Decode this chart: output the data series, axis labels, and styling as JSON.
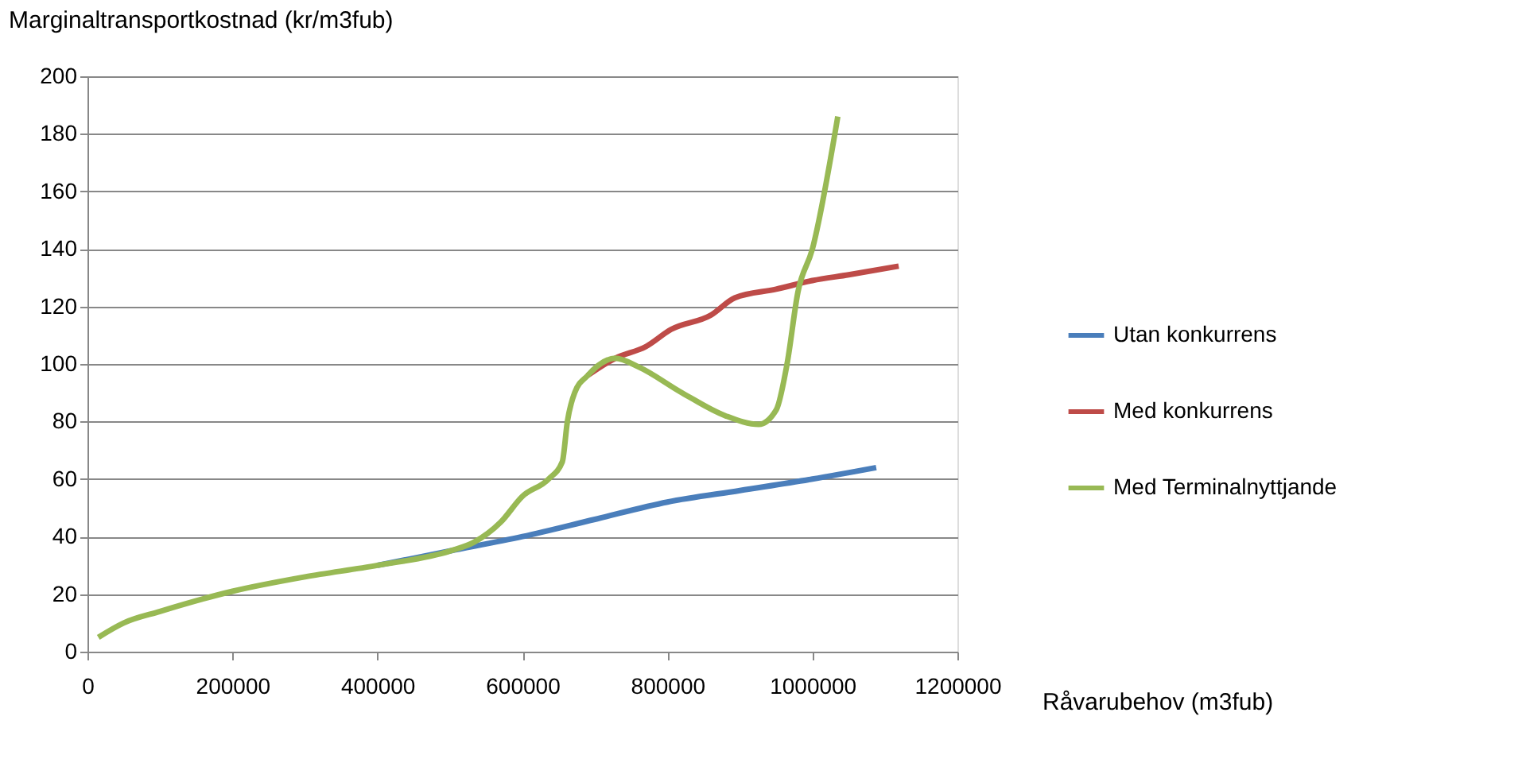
{
  "chart_data": {
    "type": "line",
    "ylabel": "Marginaltransportkostnad (kr/m3fub)",
    "xlabel": "Råvarubehov (m3fub)",
    "xlim": [
      0,
      1200000
    ],
    "xticks": [
      0,
      200000,
      400000,
      600000,
      800000,
      1000000,
      1200000
    ],
    "ylim": [
      0,
      200
    ],
    "yticks": [
      0,
      20,
      40,
      60,
      80,
      100,
      120,
      140,
      160,
      180,
      200
    ],
    "grid": "y",
    "legend": "right",
    "line_style": "solid",
    "marker": "none",
    "series": [
      {
        "name": "Utan konkurrens",
        "color": "#4a7ebb",
        "x": [
          400000,
          500000,
          600000,
          700000,
          800000,
          900000,
          1000000,
          1088000
        ],
        "values": [
          30,
          35,
          40,
          46,
          52,
          56,
          60,
          64
        ]
      },
      {
        "name": "Med konkurrens",
        "color": "#be4b48",
        "x": [
          690000,
          728000,
          770000,
          805000,
          860000,
          893000,
          950000,
          1000000,
          1050000,
          1119000
        ],
        "values": [
          96,
          102,
          106,
          112,
          117,
          123,
          126,
          129,
          131,
          134
        ]
      },
      {
        "name": "Med Terminalnyttjande",
        "color": "#98b954",
        "x": [
          15000,
          50000,
          100000,
          200000,
          300000,
          400000,
          500000,
          533000,
          570000,
          600000,
          636000,
          655000,
          662000,
          672000,
          690000,
          728000,
          760000,
          820000,
          880000,
          926000,
          950000,
          965000,
          980000,
          1000000,
          1035000
        ],
        "values": [
          5,
          10,
          14,
          21,
          26,
          30,
          35,
          38,
          45,
          54,
          60,
          66,
          80,
          90,
          96,
          102,
          99,
          90,
          82,
          79,
          84,
          100,
          125,
          140,
          186
        ]
      }
    ]
  }
}
